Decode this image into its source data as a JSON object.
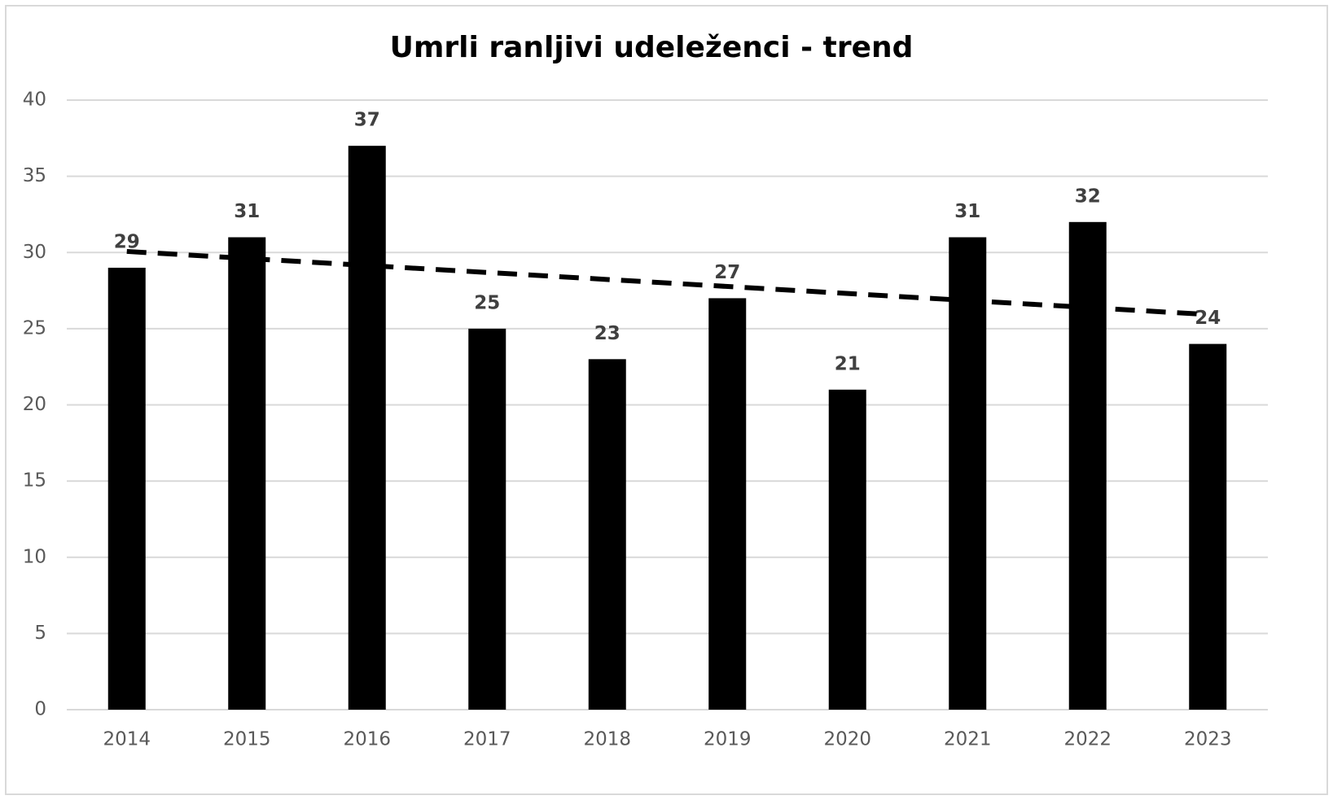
{
  "chart_data": {
    "type": "bar",
    "title": "Umrli ranljivi udeleženci - trend",
    "categories": [
      "2014",
      "2015",
      "2016",
      "2017",
      "2018",
      "2019",
      "2020",
      "2021",
      "2022",
      "2023"
    ],
    "values": [
      29,
      31,
      37,
      25,
      23,
      27,
      21,
      31,
      32,
      24
    ],
    "color": "#000000",
    "ylim": [
      0,
      40
    ],
    "yticks": [
      0,
      5,
      10,
      15,
      20,
      25,
      30,
      35,
      40
    ],
    "grid": true,
    "trendline": {
      "values": [
        30.07,
        25.93
      ],
      "color": "#000000",
      "style": "dashed"
    }
  }
}
